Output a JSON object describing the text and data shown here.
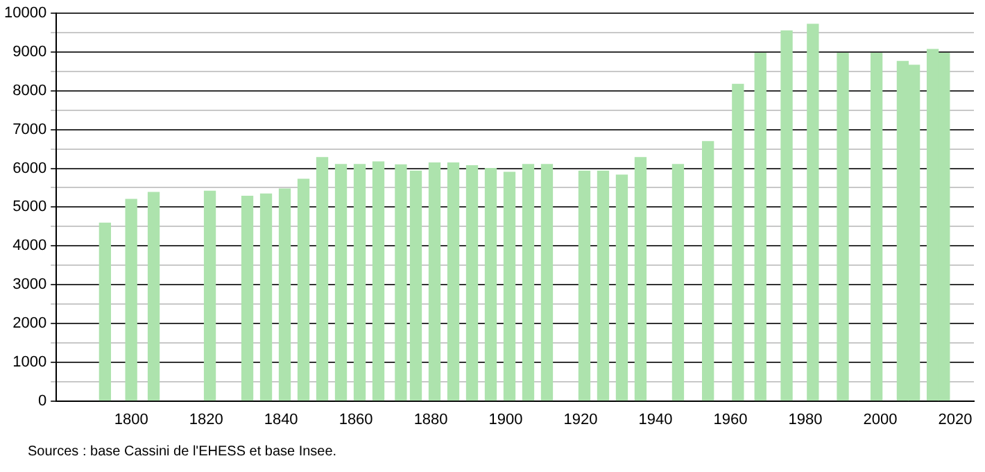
{
  "chart_data": {
    "type": "bar",
    "x": [
      1793,
      1800,
      1806,
      1821,
      1831,
      1836,
      1841,
      1846,
      1851,
      1856,
      1861,
      1866,
      1872,
      1876,
      1881,
      1886,
      1891,
      1896,
      1901,
      1906,
      1911,
      1921,
      1926,
      1931,
      1936,
      1946,
      1954,
      1962,
      1968,
      1975,
      1982,
      1990,
      1999,
      2006,
      2009,
      2014,
      2017
    ],
    "values": [
      4590,
      5200,
      5380,
      5410,
      5280,
      5340,
      5470,
      5720,
      6280,
      6100,
      6100,
      6170,
      6090,
      5930,
      6140,
      6140,
      6070,
      6000,
      5900,
      6100,
      6100,
      5930,
      5930,
      5830,
      6280,
      6100,
      6690,
      8170,
      8970,
      9550,
      9720,
      8970,
      8970,
      8760,
      8660,
      9070,
      8970
    ],
    "color": "#ade3ad",
    "xlim": [
      1780,
      2025
    ],
    "xticks": [
      1800,
      1820,
      1840,
      1860,
      1880,
      1900,
      1920,
      1940,
      1960,
      1980,
      2000,
      2020
    ],
    "ylim": [
      0,
      10000
    ],
    "yticks": [
      0,
      {
        "value": 500,
        "label": null
      },
      1000,
      {
        "value": 1500,
        "label": null
      },
      2000,
      {
        "value": 2500,
        "label": null
      },
      3000,
      {
        "value": 3500,
        "label": null
      },
      4000,
      {
        "value": 4500,
        "label": null
      },
      5000,
      {
        "value": 5500,
        "label": null
      },
      6000,
      {
        "value": 6500,
        "label": null
      },
      7000,
      {
        "value": 7500,
        "label": null
      },
      8000,
      {
        "value": 8500,
        "label": null
      },
      9000,
      {
        "value": 9500,
        "label": null
      },
      10000
    ],
    "grid": "y",
    "legend": false,
    "annotations": [
      "Sources : base Cassini de l'EHESS et base Insee."
    ]
  }
}
